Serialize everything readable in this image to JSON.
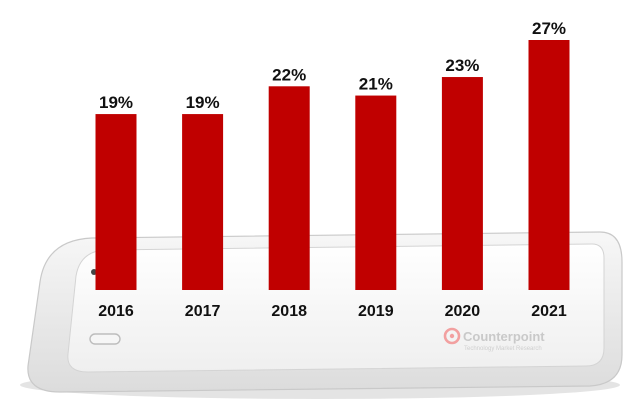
{
  "chart_data": {
    "type": "bar",
    "categories": [
      "2016",
      "2017",
      "2018",
      "2019",
      "2020",
      "2021"
    ],
    "values": [
      19,
      19,
      22,
      21,
      23,
      27
    ],
    "value_labels": [
      "19%",
      "19%",
      "22%",
      "21%",
      "23%",
      "27%"
    ],
    "unit": "%",
    "title": "",
    "xlabel": "",
    "ylabel": "",
    "ylim": [
      0,
      27
    ],
    "grid": false,
    "bar_color": "#c00000"
  },
  "branding": {
    "name": "Counterpoint",
    "tagline": "Technology Market Research",
    "logo_color": "#f2a0a0"
  }
}
